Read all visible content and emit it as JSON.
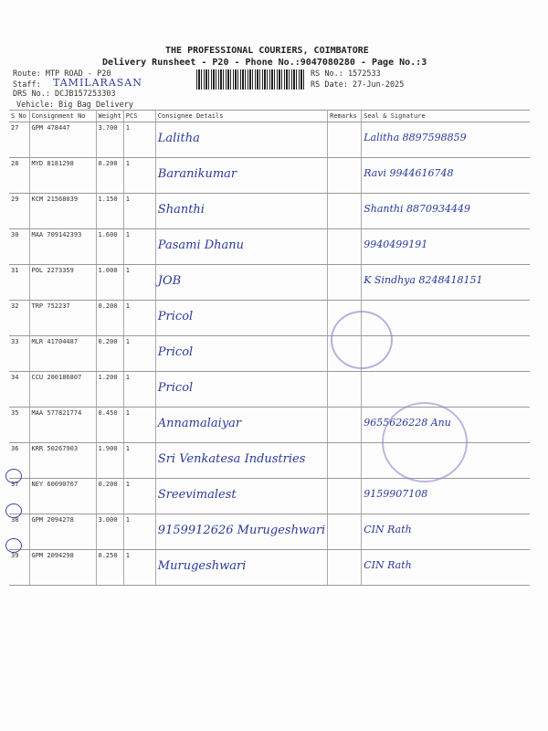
{
  "header": {
    "company": "THE PROFESSIONAL COURIERS, COIMBATORE",
    "title": "Delivery Runsheet - P20 - Phone No.:9047080280 - Page No.:3",
    "route": "Route: MTP ROAD - P20",
    "staff_label": "Staff:",
    "staff_name": "TAMILARASAN",
    "drs": "DRS No.: DCJB157253303",
    "vehicle": "Vehicle: Big Bag Delivery",
    "rs_no": "RS No.: 1572533",
    "rs_date": "RS Date: 27-Jun-2025"
  },
  "columns": [
    "S No",
    "Consignment No",
    "Weight",
    "PCS",
    "Consignee Details",
    "Remarks",
    "Seal & Signature"
  ],
  "rows": [
    {
      "sno": "27",
      "cn": "GPM 478447",
      "wt": "3.700",
      "pcs": "1",
      "consignee": "Lalitha",
      "seal": "Lalitha 8897598859"
    },
    {
      "sno": "28",
      "cn": "MYD 8181298",
      "wt": "0.200",
      "pcs": "1",
      "consignee": "Baranikumar",
      "seal": "Ravi 9944616748"
    },
    {
      "sno": "29",
      "cn": "KCM 21568039",
      "wt": "1.150",
      "pcs": "1",
      "consignee": "Shanthi",
      "seal": "Shanthi 8870934449"
    },
    {
      "sno": "30",
      "cn": "MAA 709142393",
      "wt": "1.600",
      "pcs": "1",
      "consignee": "Pasami Dhanu",
      "seal": "9940499191"
    },
    {
      "sno": "31",
      "cn": "POL 2273359",
      "wt": "1.000",
      "pcs": "1",
      "consignee": "JOB",
      "seal": "K Sindhya 8248418151"
    },
    {
      "sno": "32",
      "cn": "TRP 752237",
      "wt": "0.200",
      "pcs": "1",
      "consignee": "Pricol",
      "seal": ""
    },
    {
      "sno": "33",
      "cn": "MLR 41704487",
      "wt": "0.200",
      "pcs": "1",
      "consignee": "Pricol",
      "seal": ""
    },
    {
      "sno": "34",
      "cn": "CCU 200186807",
      "wt": "1.200",
      "pcs": "1",
      "consignee": "Pricol",
      "seal": ""
    },
    {
      "sno": "35",
      "cn": "MAA 577821774",
      "wt": "0.450",
      "pcs": "1",
      "consignee": "Annamalaiyar",
      "seal": "9655626228 Anu"
    },
    {
      "sno": "36",
      "cn": "KRR 50267903",
      "wt": "1.900",
      "pcs": "1",
      "consignee": "Sri Venkatesa Industries",
      "seal": ""
    },
    {
      "sno": "37",
      "cn": "NEY 60090767",
      "wt": "0.200",
      "pcs": "1",
      "consignee": "Sreevimalest",
      "seal": "9159907108"
    },
    {
      "sno": "38",
      "cn": "GPM 2094278",
      "wt": "3.000",
      "pcs": "1",
      "consignee": "9159912626 Murugeshwari",
      "seal": "CIN Rath"
    },
    {
      "sno": "39",
      "cn": "GPM 2094298",
      "wt": "0.250",
      "pcs": "1",
      "consignee": "Murugeshwari",
      "seal": "CIN Rath"
    }
  ]
}
